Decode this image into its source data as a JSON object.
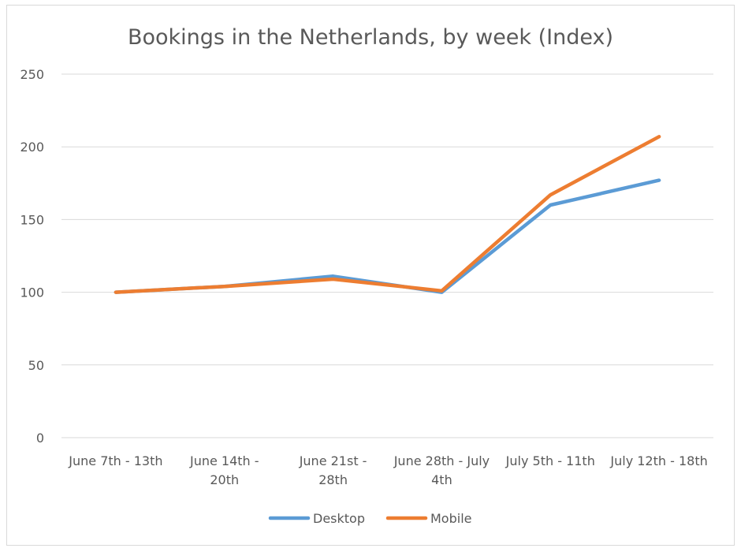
{
  "chart_data": {
    "type": "line",
    "title": "Bookings in the Netherlands, by week (Index)",
    "xlabel": "",
    "ylabel": "",
    "categories": [
      [
        "June 7th - 13th"
      ],
      [
        "June 14th -",
        "20th"
      ],
      [
        "June 21st -",
        "28th"
      ],
      [
        "June 28th - July",
        "4th"
      ],
      [
        "July 5th - 11th"
      ],
      [
        "July 12th - 18th"
      ]
    ],
    "ylim": [
      0,
      250
    ],
    "yticks": [
      0,
      50,
      100,
      150,
      200,
      250
    ],
    "grid": true,
    "legend_position": "bottom",
    "series": [
      {
        "name": "Desktop",
        "color": "#5b9bd5",
        "values": [
          100,
          104,
          111,
          100,
          160,
          177
        ]
      },
      {
        "name": "Mobile",
        "color": "#ed7d31",
        "values": [
          100,
          104,
          109,
          101,
          167,
          207
        ]
      }
    ]
  },
  "colors": {
    "gridline": "#d9d9d9",
    "text": "#595959"
  }
}
